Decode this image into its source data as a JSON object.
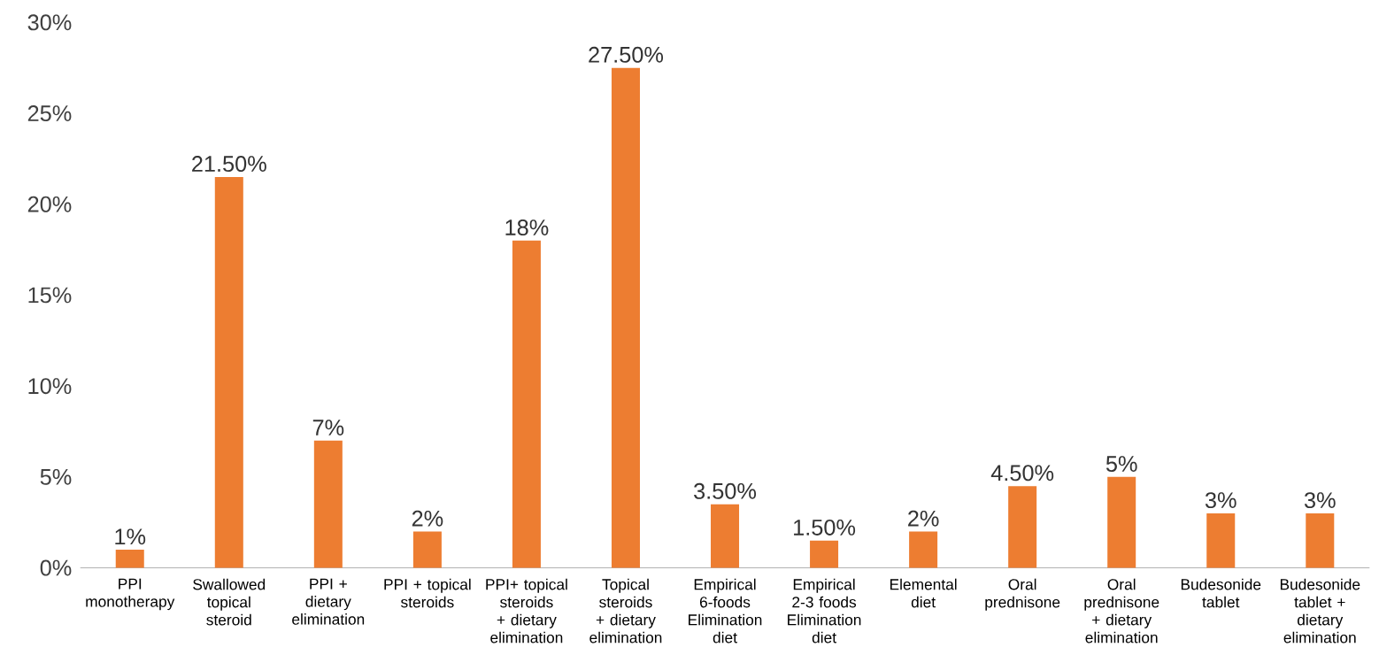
{
  "chart_data": {
    "type": "bar",
    "categories": [
      "PPI monotherapy",
      "Swallowed topical steroid",
      "PPI + dietary elimination",
      "PPI + topical steroids",
      "PPI+ topical steroids + dietary elimination",
      "Topical steroids + dietary elimination",
      "Empirical 6-foods Elimination diet",
      "Empirical 2-3 foods Elimination diet",
      "Elemental diet",
      "Oral prednisone",
      "Oral prednisone + dietary elimination",
      "Budesonide tablet",
      "Budesonide tablet + dietary elimination"
    ],
    "values": [
      1,
      21.5,
      7,
      2,
      18,
      27.5,
      3.5,
      1.5,
      2,
      4.5,
      5,
      3,
      3
    ],
    "value_labels": [
      "1%",
      "21.50%",
      "7%",
      "2%",
      "18%",
      "27.50%",
      "3.50%",
      "1.50%",
      "2%",
      "4.50%",
      "5%",
      "3%",
      "3%"
    ],
    "color": "#ed7d31",
    "ylim": [
      0,
      30
    ],
    "yticks": [
      {
        "value": 0,
        "label": "0%"
      },
      {
        "value": 5,
        "label": "5%"
      },
      {
        "value": 10,
        "label": "10%"
      },
      {
        "value": 15,
        "label": "15%"
      },
      {
        "value": 20,
        "label": "20%"
      },
      {
        "value": 25,
        "label": "25%"
      },
      {
        "value": 30,
        "label": "30%"
      }
    ],
    "grid": false
  }
}
